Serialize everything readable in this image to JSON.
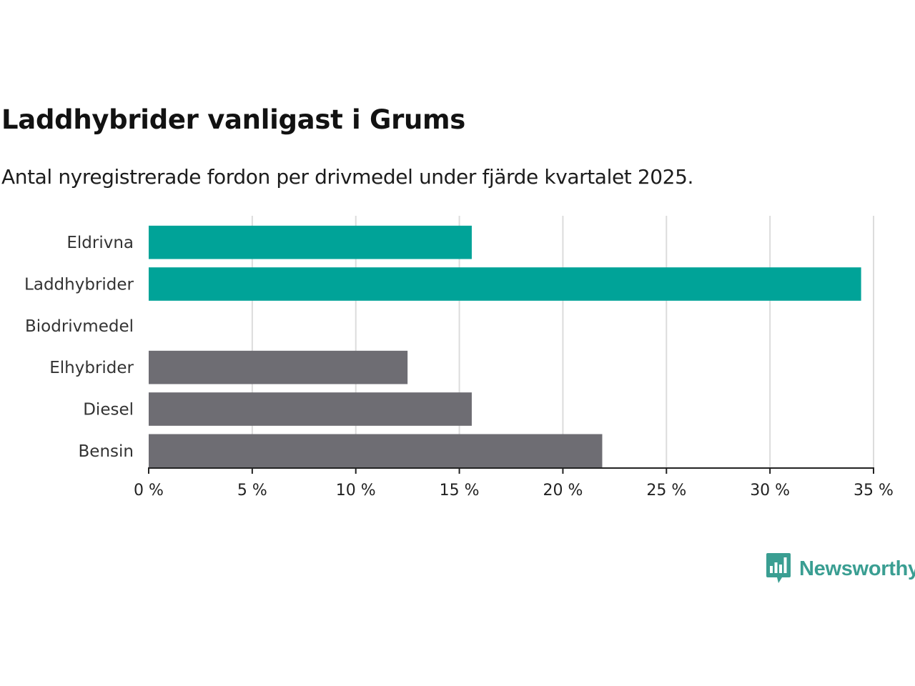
{
  "title": "Laddhybrider vanligast i Grums",
  "subtitle": "Antal nyregistrerade fordon per drivmedel under fjärde kvartalet 2025.",
  "logo": {
    "icon": "bar-chart-speech-bubble-icon",
    "text": "Newsworthy",
    "color": "#3a9e92"
  },
  "chart_data": {
    "type": "bar",
    "orientation": "horizontal",
    "title": "Laddhybrider vanligast i Grums",
    "subtitle": "Antal nyregistrerade fordon per drivmedel under fjärde kvartalet 2025.",
    "categories": [
      "Eldrivna",
      "Laddhybrider",
      "Biodrivmedel",
      "Elhybrider",
      "Diesel",
      "Bensin"
    ],
    "values": [
      15.6,
      34.4,
      0,
      12.5,
      15.6,
      21.9
    ],
    "colors": [
      "#00a398",
      "#00a398",
      "#00a398",
      "#6e6d73",
      "#6e6d73",
      "#6e6d73"
    ],
    "unit": "%",
    "xlim": [
      0,
      35
    ],
    "x_ticks": [
      0,
      5,
      10,
      15,
      20,
      25,
      30,
      35
    ],
    "x_tick_labels": [
      "0 %",
      "5 %",
      "10 %",
      "15 %",
      "20 %",
      "25 %",
      "30 %",
      "35 %"
    ],
    "grid": "vertical",
    "legend": "none"
  }
}
